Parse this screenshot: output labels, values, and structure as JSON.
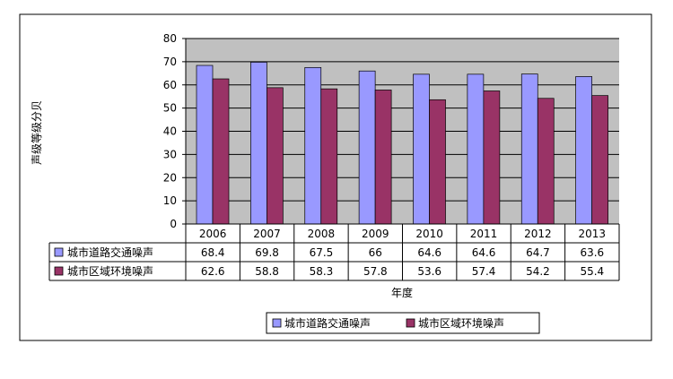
{
  "chart_data": {
    "type": "bar",
    "ylabel": "声级等级分贝",
    "xlabel": "年度",
    "ylim": [
      0,
      80
    ],
    "y_ticks": [
      0,
      10,
      20,
      30,
      40,
      50,
      60,
      70,
      80
    ],
    "categories": [
      "2006",
      "2007",
      "2008",
      "2009",
      "2010",
      "2011",
      "2012",
      "2013"
    ],
    "series": [
      {
        "name": "城市道路交通噪声",
        "color": "#9999ff",
        "values": [
          68.4,
          69.8,
          67.5,
          66,
          64.6,
          64.6,
          64.7,
          63.6
        ],
        "labels": [
          "68.4",
          "69.8",
          "67.5",
          "66",
          "64.6",
          "64.6",
          "64.7",
          "63.6"
        ]
      },
      {
        "name": "城市区域环境噪声",
        "color": "#993366",
        "values": [
          62.6,
          58.8,
          58.3,
          57.8,
          53.6,
          57.4,
          54.2,
          55.4
        ],
        "labels": [
          "62.6",
          "58.8",
          "58.3",
          "57.8",
          "53.6",
          "57.4",
          "54.2",
          "55.4"
        ]
      }
    ],
    "grid": true,
    "plot_background": "#c0c0c0",
    "legend": "bottom",
    "data_table": true
  }
}
